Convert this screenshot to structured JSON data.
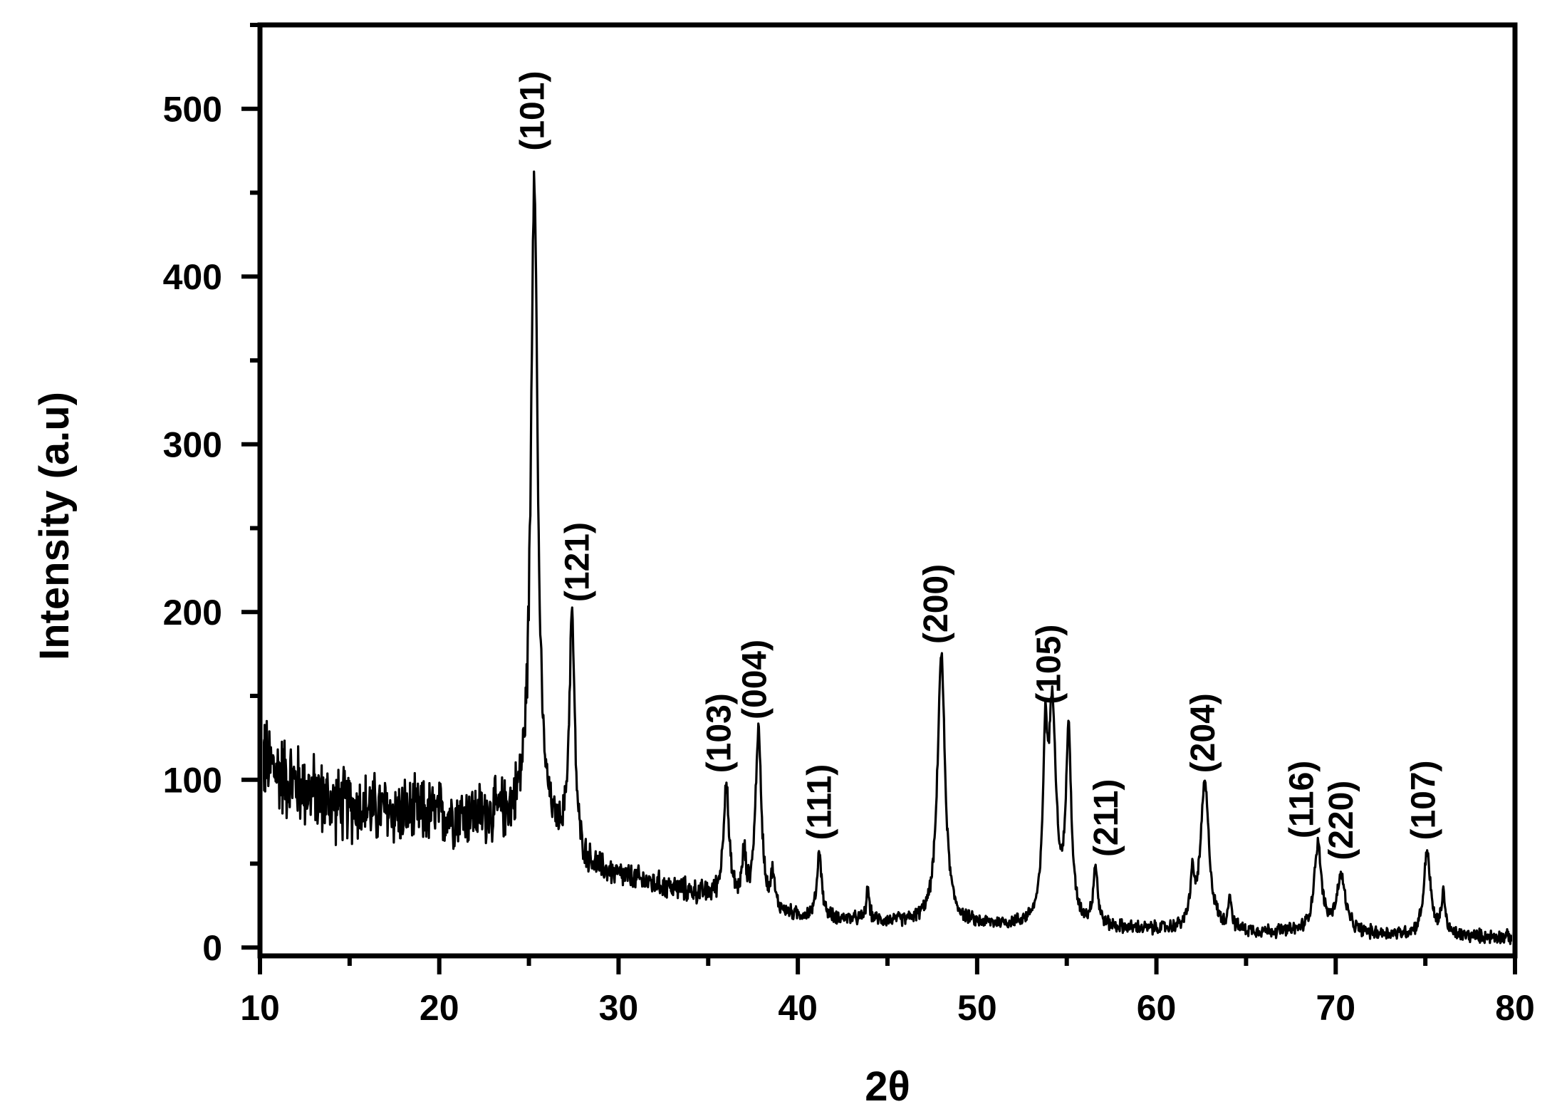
{
  "chart_data": {
    "type": "line",
    "title": "",
    "xlabel": "2θ",
    "ylabel": "Intensity (a.u)",
    "xlim": [
      10,
      80
    ],
    "ylim": [
      -5,
      550
    ],
    "x_ticks": [
      10,
      20,
      30,
      40,
      50,
      60,
      70,
      80
    ],
    "y_ticks": [
      0,
      100,
      200,
      300,
      400,
      500
    ],
    "grid": false,
    "legend": "none",
    "line_color": "#000000",
    "background": {
      "anchors": [
        [
          10,
          112
        ],
        [
          12,
          98
        ],
        [
          14,
          86
        ],
        [
          18,
          80
        ],
        [
          22,
          78
        ],
        [
          24.6,
          76
        ],
        [
          26,
          66
        ],
        [
          28,
          48
        ],
        [
          30,
          42
        ],
        [
          33,
          35
        ],
        [
          36,
          28
        ],
        [
          38,
          22
        ],
        [
          40,
          18
        ],
        [
          45,
          15
        ],
        [
          50,
          13
        ],
        [
          55,
          12
        ],
        [
          60,
          10
        ],
        [
          65,
          9
        ],
        [
          70,
          8
        ],
        [
          75,
          7
        ],
        [
          80,
          6
        ]
      ],
      "noise_amplitude": [
        [
          10,
          34
        ],
        [
          13,
          28
        ],
        [
          20,
          24
        ],
        [
          25,
          22
        ],
        [
          26,
          12
        ],
        [
          30,
          10
        ],
        [
          36,
          8
        ],
        [
          40,
          5
        ],
        [
          80,
          5
        ]
      ]
    },
    "peaks": [
      {
        "label": "(101)",
        "x": 25.3,
        "y": 465,
        "width": 0.22
      },
      {
        "label": "(121)",
        "x": 27.4,
        "y": 196,
        "width": 0.18
      },
      {
        "label": "(103)",
        "x": 36.0,
        "y": 97,
        "width": 0.18
      },
      {
        "label": "(004)",
        "x": 37.8,
        "y": 128,
        "width": 0.2
      },
      {
        "label": "(111)",
        "x": 41.2,
        "y": 57,
        "width": 0.15
      },
      {
        "label": "(200)",
        "x": 48.0,
        "y": 174,
        "width": 0.25
      },
      {
        "label": "(105)",
        "x": 54.2,
        "y": 137,
        "width": 0.25
      },
      {
        "label": "",
        "x": 55.1,
        "y": 123,
        "width": 0.18
      },
      {
        "label": "(211)",
        "x": 56.6,
        "y": 46,
        "width": 0.15
      },
      {
        "label": "(204)",
        "x": 62.7,
        "y": 97,
        "width": 0.28
      },
      {
        "label": "(116)",
        "x": 69.0,
        "y": 60,
        "width": 0.25
      },
      {
        "label": "(220)",
        "x": 70.3,
        "y": 41,
        "width": 0.3
      },
      {
        "label": "(107)",
        "x": 75.1,
        "y": 57,
        "width": 0.22
      }
    ],
    "minor_peaks": [
      {
        "x": 37.0,
        "y": 52,
        "width": 0.12
      },
      {
        "x": 38.6,
        "y": 40,
        "width": 0.12
      },
      {
        "x": 43.9,
        "y": 34,
        "width": 0.1
      },
      {
        "x": 53.8,
        "y": 105,
        "width": 0.15
      },
      {
        "x": 62.0,
        "y": 36,
        "width": 0.15
      },
      {
        "x": 64.1,
        "y": 30,
        "width": 0.1
      },
      {
        "x": 76.0,
        "y": 32,
        "width": 0.12
      }
    ],
    "annotations": [
      {
        "text": "(101)",
        "x": 25.2,
        "y": 475
      },
      {
        "text": "(121)",
        "x": 27.7,
        "y": 206
      },
      {
        "text": "(103)",
        "x": 35.6,
        "y": 104
      },
      {
        "text": "(004)",
        "x": 37.6,
        "y": 136
      },
      {
        "text": "(111)",
        "x": 41.2,
        "y": 64
      },
      {
        "text": "(200)",
        "x": 47.7,
        "y": 181
      },
      {
        "text": "(105)",
        "x": 54.0,
        "y": 145
      },
      {
        "text": "(211)",
        "x": 57.2,
        "y": 54
      },
      {
        "text": "(204)",
        "x": 62.6,
        "y": 104
      },
      {
        "text": "(116)",
        "x": 68.1,
        "y": 65
      },
      {
        "text": "(220)",
        "x": 70.3,
        "y": 52
      },
      {
        "text": "(107)",
        "x": 74.9,
        "y": 64
      }
    ]
  }
}
